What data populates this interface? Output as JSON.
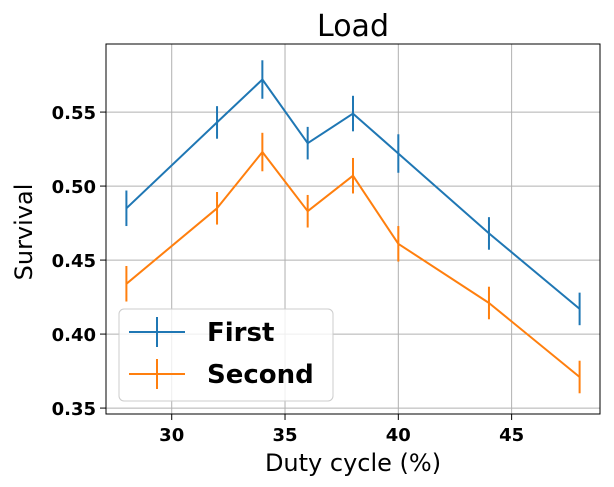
{
  "chart_data": {
    "type": "line",
    "title": "Load",
    "xlabel": "Duty cycle (%)",
    "ylabel": "Survival",
    "xlim": [
      27.1,
      48.9
    ],
    "ylim": [
      0.346,
      0.596
    ],
    "xticks": [
      30,
      35,
      40,
      45
    ],
    "yticks": [
      0.35,
      0.4,
      0.45,
      0.5,
      0.55
    ],
    "grid": true,
    "legend_position": "lower-left",
    "x": [
      28,
      32,
      34,
      36,
      38,
      40,
      44,
      48
    ],
    "series": [
      {
        "name": "First",
        "color": "#1f77b4",
        "values": [
          0.485,
          0.543,
          0.572,
          0.529,
          0.549,
          0.522,
          0.468,
          0.417
        ],
        "errors": [
          0.012,
          0.011,
          0.013,
          0.011,
          0.012,
          0.013,
          0.011,
          0.011
        ]
      },
      {
        "name": "Second",
        "color": "#ff7f0e",
        "values": [
          0.434,
          0.485,
          0.523,
          0.483,
          0.507,
          0.461,
          0.421,
          0.371
        ],
        "errors": [
          0.012,
          0.011,
          0.013,
          0.011,
          0.012,
          0.012,
          0.011,
          0.011
        ]
      }
    ]
  }
}
